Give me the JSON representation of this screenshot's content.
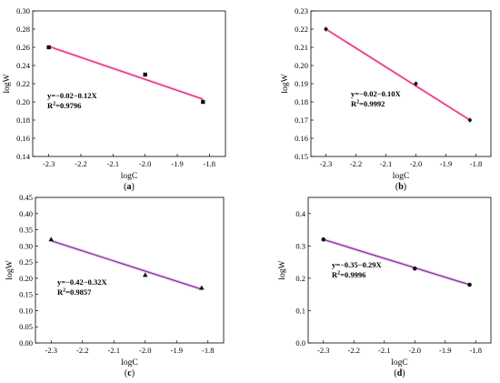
{
  "chart_data": [
    {
      "type": "scatter",
      "panel_label": "a",
      "xlabel": "logC",
      "ylabel": "logW",
      "xlim": [
        -2.35,
        -1.75
      ],
      "ylim": [
        0.14,
        0.3
      ],
      "xticks": [
        "-2.3",
        "-2.2",
        "-2.1",
        "-2.0",
        "-1.9",
        "-1.8"
      ],
      "yticks": [
        "0.14",
        "0.16",
        "0.18",
        "0.20",
        "0.22",
        "0.24",
        "0.26",
        "0.28",
        "0.30"
      ],
      "marker": "square",
      "points": [
        {
          "x": -2.3,
          "y": 0.26
        },
        {
          "x": -2.0,
          "y": 0.23
        },
        {
          "x": -1.82,
          "y": 0.2
        }
      ],
      "fit_line": {
        "x": [
          -2.3,
          -1.82
        ],
        "y": [
          0.261,
          0.203
        ]
      },
      "equation": "y=−0.02−0.12X",
      "r2_prefix": "R",
      "r2_sup": "2",
      "r2_value": "=0.9796",
      "line_color": "#e8207c"
    },
    {
      "type": "scatter",
      "panel_label": "b",
      "xlabel": "logC",
      "ylabel": "logW",
      "xlim": [
        -2.35,
        -1.75
      ],
      "ylim": [
        0.15,
        0.23
      ],
      "xticks": [
        "-2.3",
        "-2.2",
        "-2.1",
        "-2.0",
        "-1.9",
        "-1.8"
      ],
      "yticks": [
        "0.15",
        "0.16",
        "0.17",
        "0.18",
        "0.19",
        "0.20",
        "0.21",
        "0.22",
        "0.23"
      ],
      "marker": "diamond",
      "points": [
        {
          "x": -2.3,
          "y": 0.22
        },
        {
          "x": -2.0,
          "y": 0.19
        },
        {
          "x": -1.82,
          "y": 0.17
        }
      ],
      "fit_line": {
        "x": [
          -2.3,
          -1.82
        ],
        "y": [
          0.22,
          0.17
        ]
      },
      "equation": "y=−0.02−0.10X",
      "r2_prefix": "R",
      "r2_sup": "2",
      "r2_value": "=0.9992",
      "line_color": "#e8207c"
    },
    {
      "type": "scatter",
      "panel_label": "c",
      "xlabel": "logC",
      "ylabel": "logW",
      "xlim": [
        -2.35,
        -1.75
      ],
      "ylim": [
        0.0,
        0.45
      ],
      "xticks": [
        "-2.3",
        "-2.2",
        "-2.1",
        "-2.0",
        "-1.9",
        "-1.8"
      ],
      "yticks": [
        "0.00",
        "0.05",
        "0.10",
        "0.15",
        "0.20",
        "0.25",
        "0.30",
        "0.35",
        "0.40",
        "0.45"
      ],
      "marker": "triangle",
      "points": [
        {
          "x": -2.3,
          "y": 0.32
        },
        {
          "x": -2.0,
          "y": 0.21
        },
        {
          "x": -1.82,
          "y": 0.17
        }
      ],
      "fit_line": {
        "x": [
          -2.3,
          -1.82
        ],
        "y": [
          0.316,
          0.166
        ]
      },
      "equation": "y=−0.42−0.32X",
      "r2_prefix": "R",
      "r2_sup": "2",
      "r2_value": "=0.9857",
      "line_color": "#8b2d9e"
    },
    {
      "type": "scatter",
      "panel_label": "d",
      "xlabel": "logC",
      "ylabel": "logW",
      "xlim": [
        -2.35,
        -1.75
      ],
      "ylim": [
        0.0,
        0.45
      ],
      "xticks": [
        "-2.3",
        "-2.2",
        "-2.1",
        "-2.0",
        "-1.9",
        "-1.8"
      ],
      "yticks": [
        "0.0",
        "0.1",
        "0.2",
        "0.3",
        "0.4"
      ],
      "ytick_values": [
        0.0,
        0.1,
        0.2,
        0.3,
        0.4
      ],
      "marker": "circle",
      "points": [
        {
          "x": -2.3,
          "y": 0.32
        },
        {
          "x": -2.0,
          "y": 0.23
        },
        {
          "x": -1.82,
          "y": 0.18
        }
      ],
      "fit_line": {
        "x": [
          -2.3,
          -1.82
        ],
        "y": [
          0.32,
          0.18
        ]
      },
      "equation": "y=−0.35−0.29X",
      "r2_prefix": "R",
      "r2_sup": "2",
      "r2_value": "=0.9996",
      "line_color": "#8b2d9e"
    }
  ]
}
